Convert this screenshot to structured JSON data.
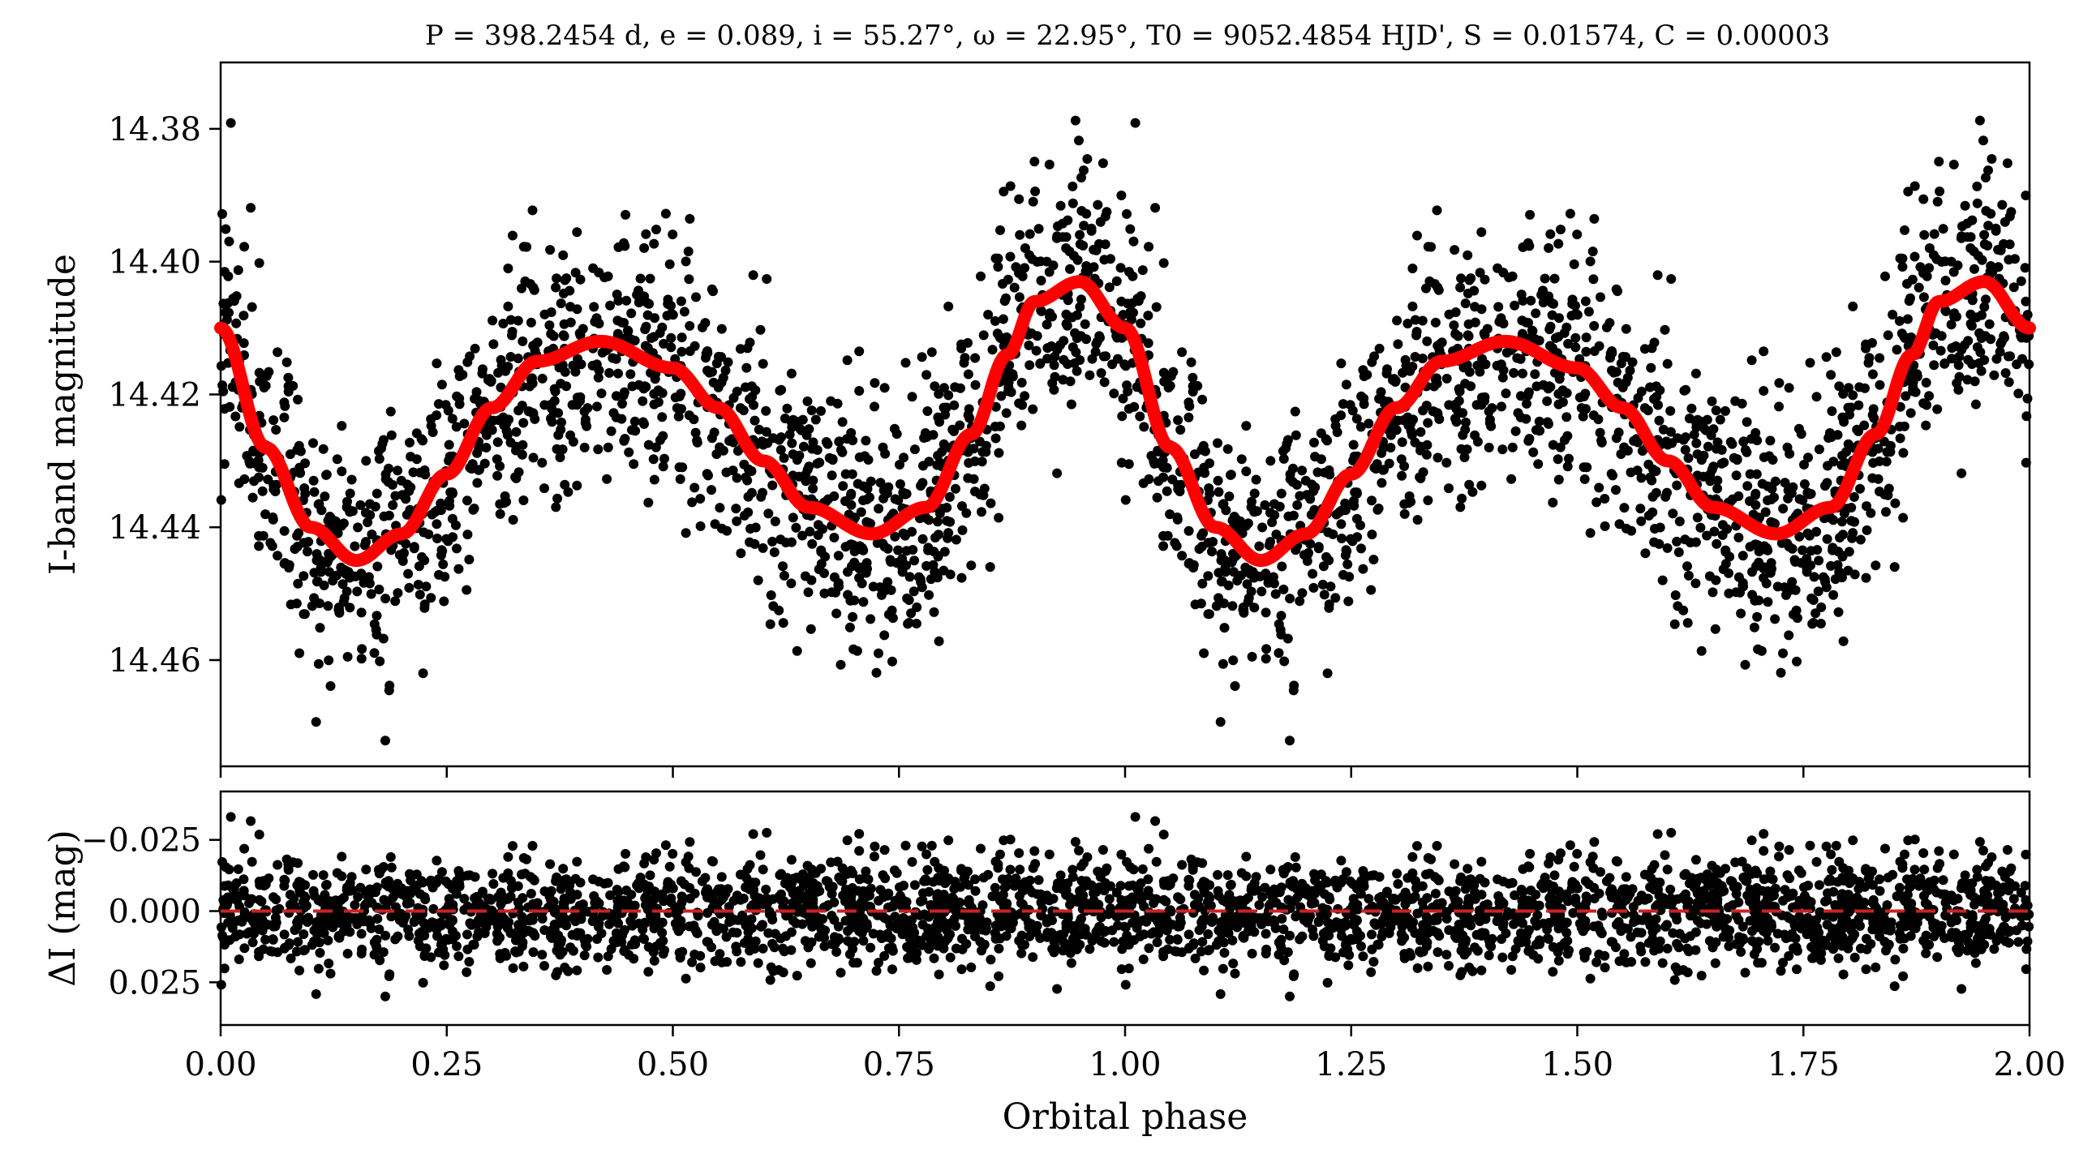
{
  "chart_data": [
    {
      "type": "scatter",
      "panel": "top",
      "title": "P = 398.2454 d, e = 0.089, i = 55.27°, ω = 22.95°, T0 = 9052.4854 HJD', S = 0.01574, C = 0.00003",
      "ylabel": "I-band magnitude",
      "xlabel": "",
      "xlim": [
        0.0,
        2.0
      ],
      "ylim": [
        14.476,
        14.37
      ],
      "y_inverted": true,
      "yticks": [
        14.38,
        14.4,
        14.42,
        14.44,
        14.46
      ],
      "yticklabels": [
        "14.38",
        "14.40",
        "14.42",
        "14.44",
        "14.46"
      ],
      "xticks": [
        0.0,
        0.25,
        0.5,
        0.75,
        1.0,
        1.25,
        1.5,
        1.75,
        2.0
      ],
      "grid": false,
      "series": [
        {
          "kind": "points",
          "color": "#000000",
          "n_points_per_cycle": 1500,
          "scatter_sigma": 0.0095
        },
        {
          "kind": "model-curve",
          "color": "#ff0000",
          "x": [
            0.0,
            0.05,
            0.1,
            0.15,
            0.2,
            0.25,
            0.3,
            0.35,
            0.42,
            0.5,
            0.55,
            0.6,
            0.65,
            0.72,
            0.78,
            0.83,
            0.87,
            0.9,
            0.95,
            1.0,
            1.05,
            1.1,
            1.15,
            1.2,
            1.25,
            1.3,
            1.35,
            1.42,
            1.5,
            1.55,
            1.6,
            1.65,
            1.72,
            1.78,
            1.83,
            1.87,
            1.9,
            1.95,
            2.0
          ],
          "y": [
            14.41,
            14.428,
            14.44,
            14.445,
            14.441,
            14.432,
            14.422,
            14.415,
            14.412,
            14.416,
            14.422,
            14.43,
            14.437,
            14.441,
            14.437,
            14.426,
            14.414,
            14.406,
            14.403,
            14.41,
            14.428,
            14.44,
            14.445,
            14.441,
            14.432,
            14.422,
            14.415,
            14.412,
            14.416,
            14.422,
            14.43,
            14.437,
            14.441,
            14.437,
            14.426,
            14.414,
            14.406,
            14.403,
            14.41
          ]
        }
      ]
    },
    {
      "type": "scatter",
      "panel": "bottom",
      "title": "",
      "ylabel": "ΔI (mag)",
      "xlabel": "Orbital phase",
      "xlim": [
        0.0,
        2.0
      ],
      "ylim": [
        0.04,
        -0.042
      ],
      "y_inverted": true,
      "yticks": [
        -0.025,
        0.0,
        0.025
      ],
      "yticklabels": [
        "−0.025",
        "0.000",
        "0.025"
      ],
      "xticks": [
        0.0,
        0.25,
        0.5,
        0.75,
        1.0,
        1.25,
        1.5,
        1.75,
        2.0
      ],
      "xticklabels": [
        "0.00",
        "0.25",
        "0.50",
        "0.75",
        "1.00",
        "1.25",
        "1.50",
        "1.75",
        "2.00"
      ],
      "grid": false,
      "reference_line": {
        "y": 0.0,
        "color": "#cc2222",
        "style": "dashed"
      },
      "series": [
        {
          "kind": "points",
          "color": "#000000",
          "n_points_per_cycle": 1500,
          "scatter_sigma": 0.0095
        }
      ]
    }
  ]
}
